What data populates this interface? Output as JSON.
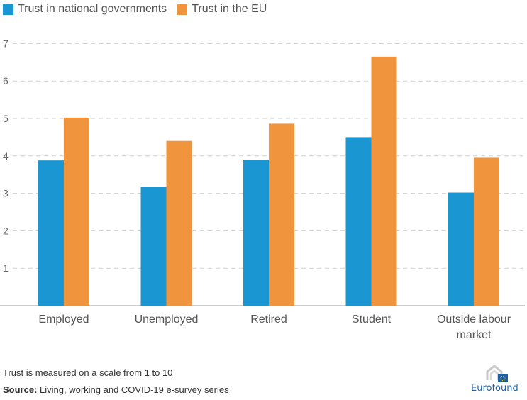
{
  "chart_data": {
    "type": "bar",
    "title": "",
    "xlabel": "",
    "ylabel": "",
    "ylim": [
      0,
      7
    ],
    "yticks": [
      1,
      2,
      3,
      4,
      5,
      6,
      7
    ],
    "grid": true,
    "legend_position": "top-left",
    "categories": [
      [
        "Employed"
      ],
      [
        "Unemployed"
      ],
      [
        "Retired"
      ],
      [
        "Student"
      ],
      [
        "Outside labour",
        "market"
      ]
    ],
    "series": [
      {
        "name": "Trust in national governments",
        "color": "#1a96d3",
        "values": [
          3.88,
          3.18,
          3.9,
          4.5,
          3.02
        ]
      },
      {
        "name": "Trust in the EU",
        "color": "#f0943e",
        "values": [
          5.02,
          4.4,
          4.86,
          6.65,
          3.95
        ]
      }
    ]
  },
  "footer": {
    "note": "Trust is measured on a scale from 1 to 10",
    "source_label": "Source:",
    "source_text": " Living, working and COVID-19 e-survey series"
  },
  "logo": {
    "text": "Eurofound"
  }
}
